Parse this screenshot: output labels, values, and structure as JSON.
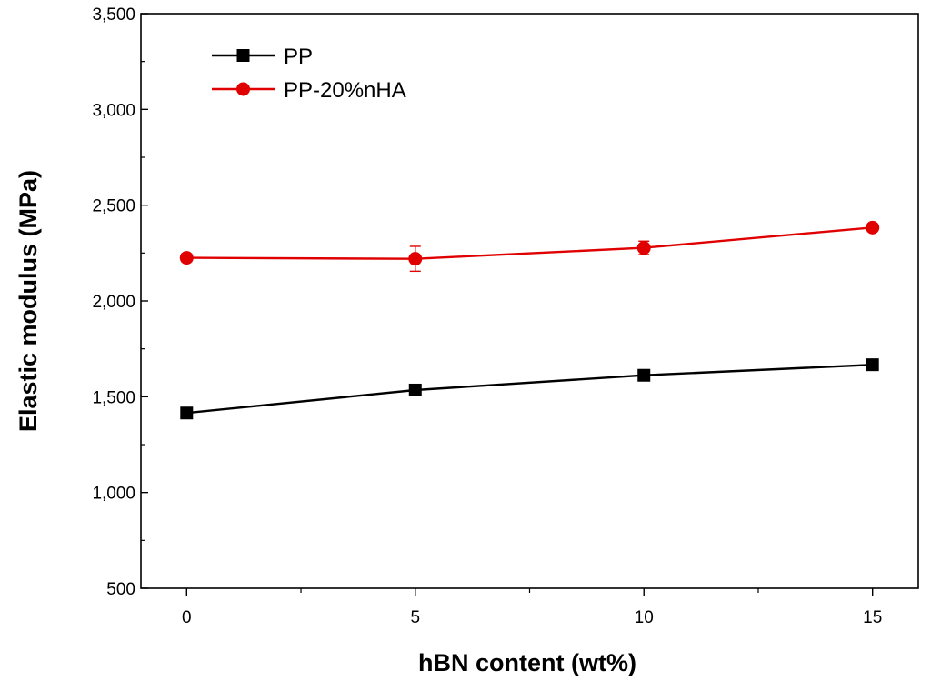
{
  "chart_data": {
    "type": "line",
    "title": "",
    "xlabel": "hBN content (wt%)",
    "ylabel": "Elastic modulus (MPa)",
    "xlim": [
      -1,
      16
    ],
    "ylim": [
      500,
      3500
    ],
    "x_ticks": [
      0,
      5,
      10,
      15
    ],
    "x_tick_labels": [
      "0",
      "5",
      "10",
      "15"
    ],
    "y_ticks": [
      500,
      1000,
      1500,
      2000,
      2500,
      3000,
      3500
    ],
    "y_tick_labels": [
      "500",
      "1,000",
      "1,500",
      "2,000",
      "2,500",
      "3,000",
      "3,500"
    ],
    "grid": false,
    "legend_position": "top-left",
    "series": [
      {
        "name": "PP",
        "color": "#000000",
        "marker": "square",
        "x": [
          0,
          5,
          10,
          15
        ],
        "y": [
          1415,
          1535,
          1612,
          1667
        ],
        "error": [
          25,
          15,
          15,
          12
        ]
      },
      {
        "name": "PP-20%nHA",
        "color": "#e00000",
        "marker": "circle",
        "x": [
          0,
          5,
          10,
          15
        ],
        "y": [
          2225,
          2220,
          2277,
          2383
        ],
        "error": [
          20,
          65,
          35,
          12
        ]
      }
    ]
  }
}
